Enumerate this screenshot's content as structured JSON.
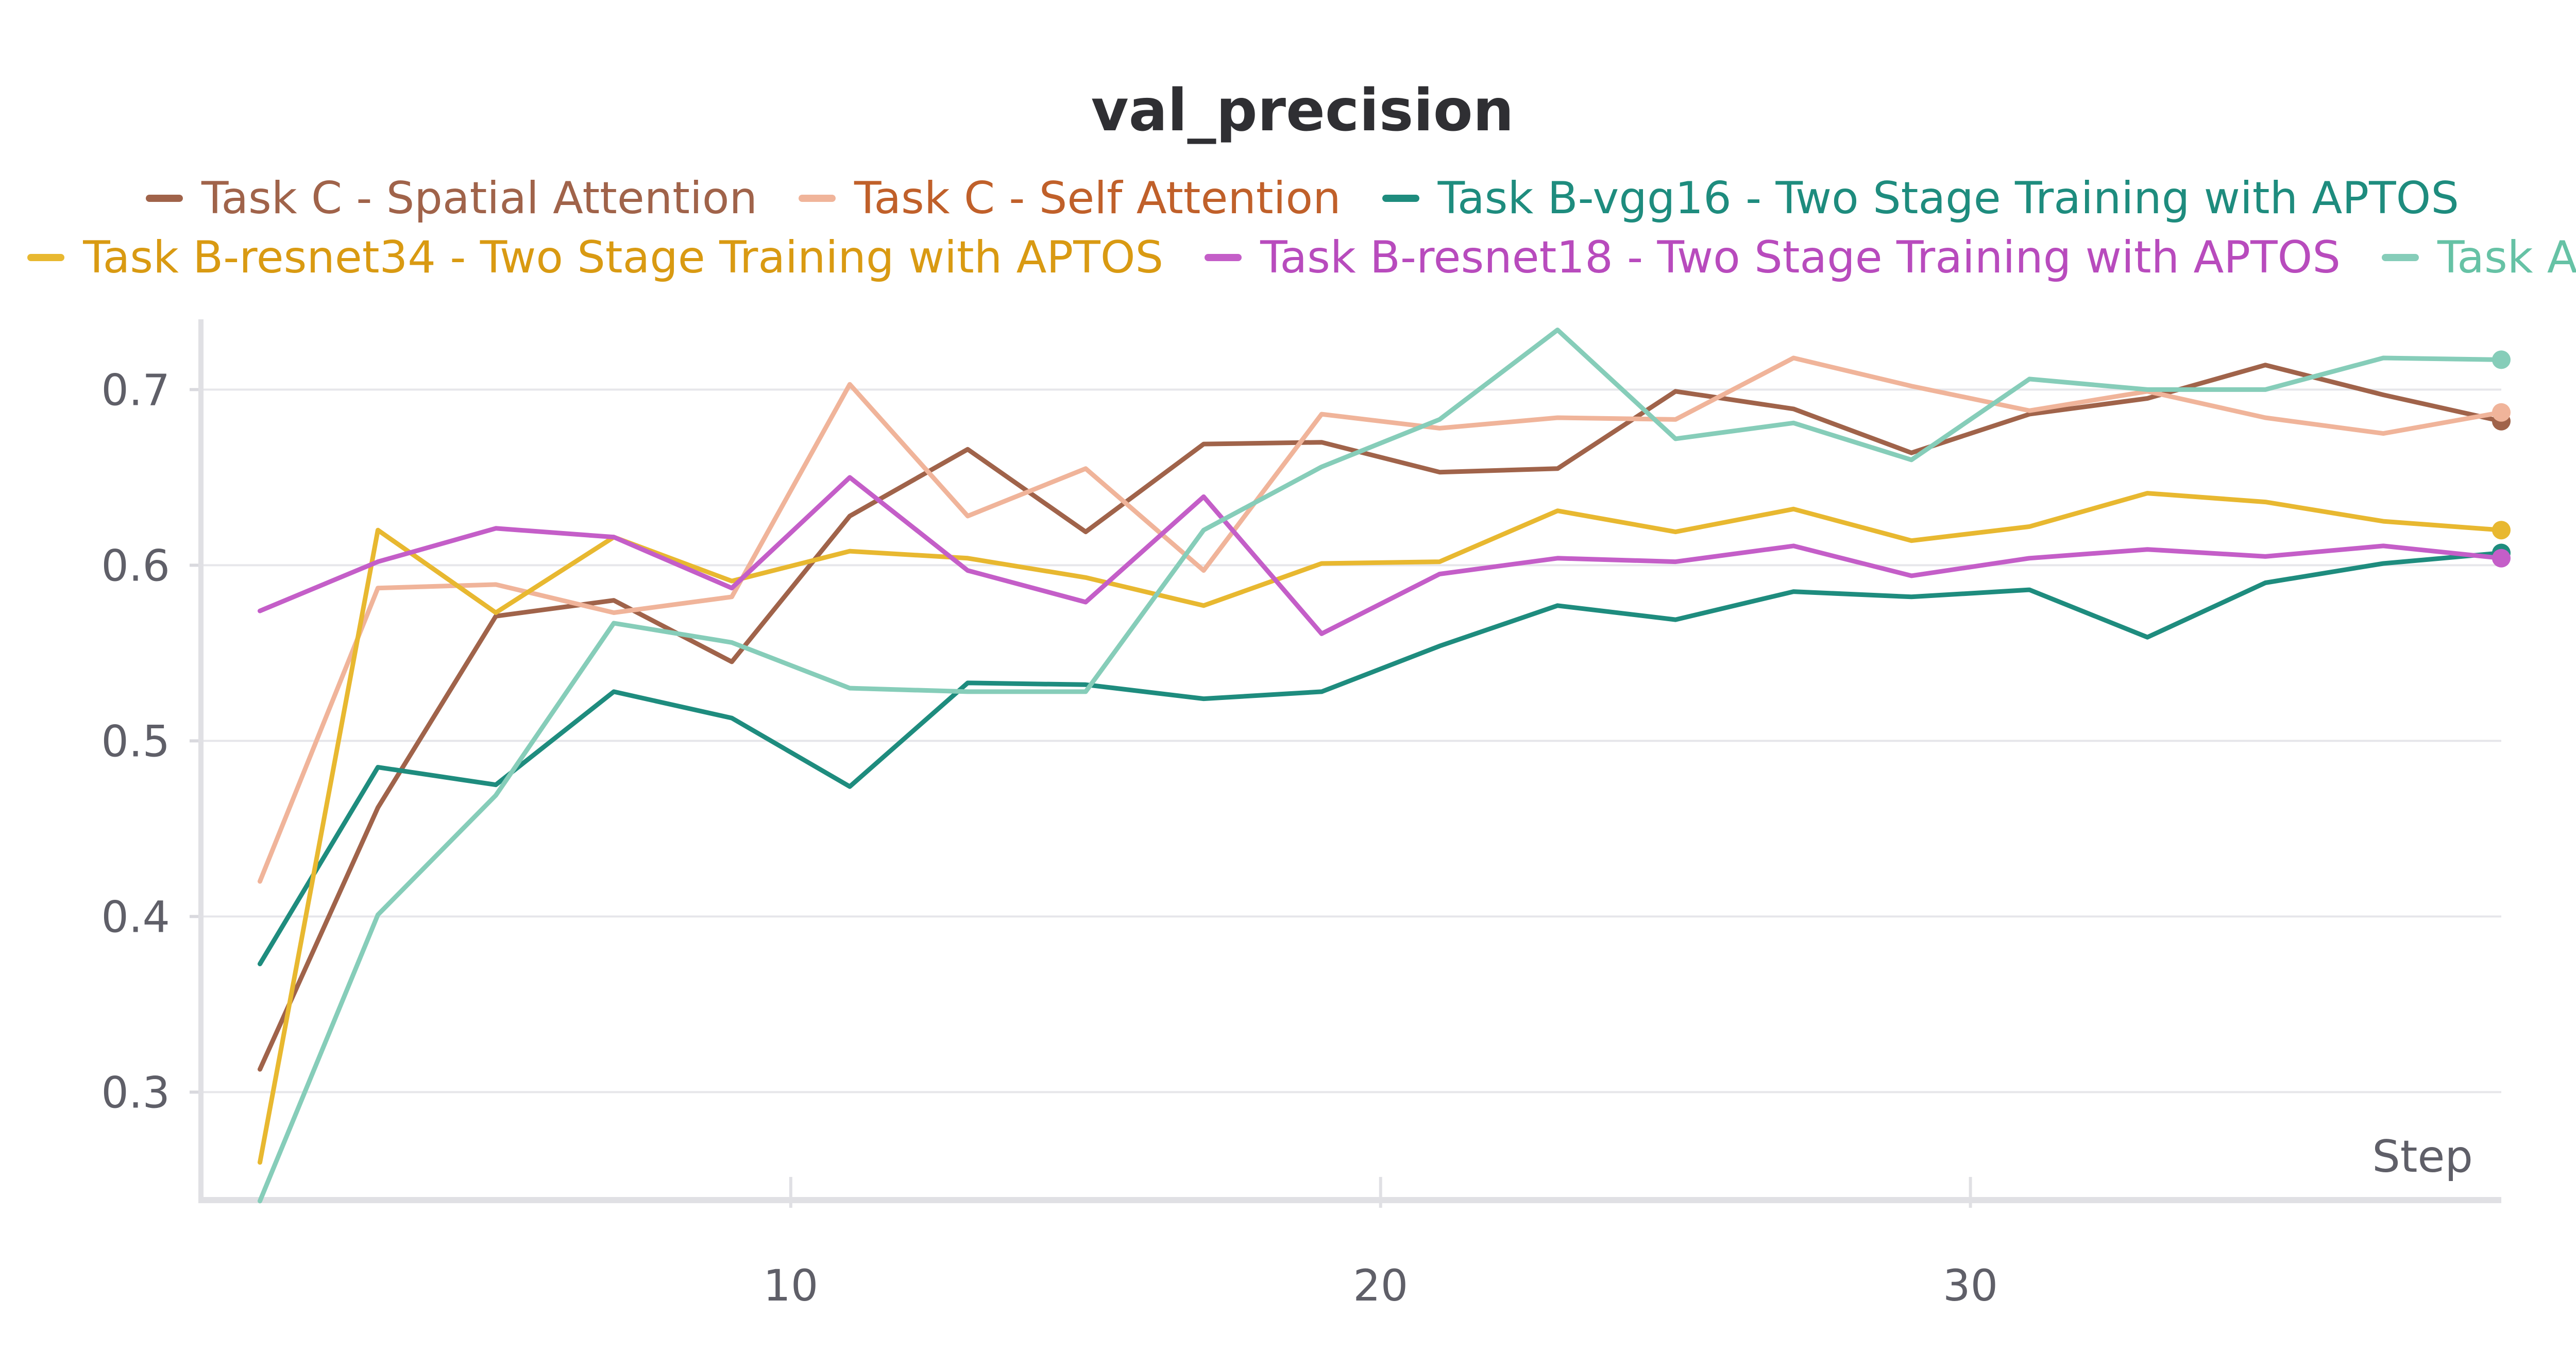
{
  "chart_data": {
    "type": "line",
    "title": "val_precision",
    "xlabel": "Step",
    "ylabel": "",
    "xlim": [
      0,
      39
    ],
    "ylim": [
      0.24,
      0.74
    ],
    "xticks": [
      10,
      20,
      30
    ],
    "yticks": [
      0.3,
      0.4,
      0.5,
      0.6,
      0.7
    ],
    "ytick_labels": [
      "0.3",
      "0.4",
      "0.5",
      "0.6",
      "0.7"
    ],
    "xtick_labels": [
      "10",
      "20",
      "30"
    ],
    "grid": "horizontal",
    "legend_placement": "top",
    "series": [
      {
        "name": "Task C - Spatial Attention",
        "color": "#a0634a",
        "label_color": "#a0634a",
        "end_marker": true,
        "x": [
          1,
          3,
          5,
          7,
          9,
          11,
          13,
          15,
          17,
          19,
          21,
          23,
          25,
          27,
          29,
          31,
          33,
          35,
          37,
          39
        ],
        "y": [
          0.313,
          0.462,
          0.571,
          0.58,
          0.545,
          0.628,
          0.666,
          0.619,
          0.669,
          0.67,
          0.653,
          0.655,
          0.699,
          0.689,
          0.664,
          0.686,
          0.695,
          0.714,
          0.697,
          0.682
        ]
      },
      {
        "name": "Task C - Self Attention",
        "color": "#f0b49a",
        "label_color": "#c0602a",
        "end_marker": true,
        "x": [
          1,
          3,
          5,
          7,
          9,
          11,
          13,
          15,
          17,
          19,
          21,
          23,
          25,
          27,
          29,
          31,
          33,
          35,
          37,
          39
        ],
        "y": [
          0.42,
          0.587,
          0.589,
          0.573,
          0.582,
          0.703,
          0.628,
          0.655,
          0.597,
          0.686,
          0.678,
          0.684,
          0.683,
          0.718,
          0.702,
          0.688,
          0.699,
          0.684,
          0.675,
          0.687
        ]
      },
      {
        "name": "Task B-vgg16 - Two Stage Training with APTOS",
        "color": "#1e8c7e",
        "label_color": "#1e8c7e",
        "end_marker": true,
        "x": [
          1,
          3,
          5,
          7,
          9,
          11,
          13,
          15,
          17,
          19,
          21,
          23,
          25,
          27,
          29,
          31,
          33,
          35,
          37,
          39
        ],
        "y": [
          0.373,
          0.485,
          0.475,
          0.528,
          0.513,
          0.474,
          0.533,
          0.532,
          0.524,
          0.528,
          0.554,
          0.577,
          0.569,
          0.585,
          0.582,
          0.586,
          0.559,
          0.59,
          0.601,
          0.607
        ]
      },
      {
        "name": "Task B-resnet34 - Two Stage Training with APTOS",
        "color": "#e8b830",
        "label_color": "#d99a12",
        "end_marker": true,
        "x": [
          1,
          3,
          5,
          7,
          9,
          11,
          13,
          15,
          17,
          19,
          21,
          23,
          25,
          27,
          29,
          31,
          33,
          35,
          37,
          39
        ],
        "y": [
          0.26,
          0.62,
          0.573,
          0.616,
          0.591,
          0.608,
          0.604,
          0.593,
          0.577,
          0.601,
          0.602,
          0.631,
          0.619,
          0.632,
          0.614,
          0.622,
          0.641,
          0.636,
          0.625,
          0.62
        ]
      },
      {
        "name": "Task B-resnet18 - Two Stage Training with APTOS",
        "color": "#c45ec8",
        "label_color": "#b84bbd",
        "end_marker": true,
        "x": [
          1,
          3,
          5,
          7,
          9,
          11,
          13,
          15,
          17,
          19,
          21,
          23,
          25,
          27,
          29,
          31,
          33,
          35,
          37,
          39
        ],
        "y": [
          0.574,
          0.602,
          0.621,
          0.616,
          0.587,
          0.65,
          0.597,
          0.579,
          0.639,
          0.561,
          0.595,
          0.604,
          0.602,
          0.611,
          0.594,
          0.604,
          0.609,
          0.605,
          0.611,
          0.604
        ]
      },
      {
        "name": "Task A",
        "color": "#86cdb9",
        "label_color": "#66c2a5",
        "end_marker": true,
        "x": [
          1,
          3,
          5,
          7,
          9,
          11,
          13,
          15,
          17,
          19,
          21,
          23,
          25,
          27,
          29,
          31,
          33,
          35,
          37,
          39
        ],
        "y": [
          0.238,
          0.401,
          0.469,
          0.567,
          0.556,
          0.53,
          0.528,
          0.528,
          0.62,
          0.656,
          0.683,
          0.734,
          0.672,
          0.681,
          0.66,
          0.706,
          0.7,
          0.7,
          0.718,
          0.717
        ]
      }
    ]
  }
}
